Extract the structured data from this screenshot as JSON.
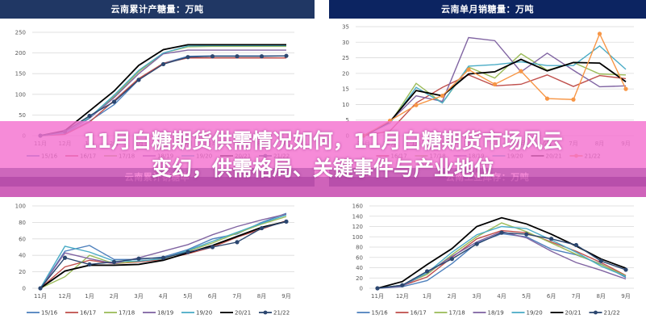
{
  "headline": {
    "line1": "11月白糖期货供需情况如何，11月白糖期货市场风云",
    "line2": "变幻，供需格局、关键事件与产业地位"
  },
  "colors": {
    "title_bar": "#203764",
    "banner_pink": "#f472d0",
    "banner_strip": "#a03296",
    "series": {
      "15/16": "#4f81bd",
      "16/17": "#c0504d",
      "17/18": "#9bbb59",
      "18/19": "#8064a2",
      "19/20": "#4bacc6",
      "20/21": "#000000",
      "21/22": "#2c4770",
      "21/22_orange": "#f79646"
    }
  },
  "chart_data": [
    {
      "id": "top-left",
      "type": "line",
      "title": "云南累计产糖量：万吨",
      "xlabel": "",
      "ylabel": "",
      "ylim": [
        0,
        250
      ],
      "yticks": [
        0,
        50,
        100,
        150,
        200,
        250
      ],
      "grid": true,
      "legend_position": "bottom",
      "categories": [
        "11月",
        "12月",
        "1月",
        "2月",
        "3月",
        "4月",
        "5月",
        "6月",
        "7月",
        "8月",
        "9月"
      ],
      "series": [
        {
          "name": "15/16",
          "values": [
            0,
            5,
            35,
            75,
            135,
            175,
            192,
            193,
            193,
            193,
            193
          ]
        },
        {
          "name": "16/17",
          "values": [
            0,
            3,
            33,
            85,
            138,
            175,
            188,
            188,
            188,
            188,
            188
          ]
        },
        {
          "name": "17/18",
          "values": [
            0,
            8,
            45,
            95,
            155,
            200,
            215,
            216,
            216,
            216,
            216
          ]
        },
        {
          "name": "18/19",
          "values": [
            0,
            6,
            42,
            92,
            150,
            198,
            207,
            207,
            207,
            207,
            207
          ]
        },
        {
          "name": "19/20",
          "values": [
            0,
            7,
            44,
            98,
            158,
            200,
            217,
            218,
            218,
            218,
            218
          ]
        },
        {
          "name": "20/21",
          "values": [
            0,
            12,
            60,
            108,
            170,
            208,
            220,
            220,
            220,
            220,
            220
          ]
        },
        {
          "name": "21/22",
          "values": [
            0,
            10,
            48,
            82,
            135,
            173,
            190,
            192,
            192,
            192,
            193
          ]
        }
      ],
      "visible_x_labels": [
        "11月",
        "12月",
        "9月"
      ],
      "legend": [
        "15/16",
        "16/17",
        "17/18",
        "18/19",
        "19/20",
        "20/21",
        "21/22"
      ]
    },
    {
      "id": "top-right",
      "type": "line",
      "title": "云南单月销糖量：万吨",
      "xlabel": "",
      "ylabel": "",
      "ylim": [
        0,
        35
      ],
      "yticks": [
        0,
        5,
        10,
        15,
        20,
        25,
        30,
        35
      ],
      "grid": true,
      "legend_position": "bottom",
      "categories": [
        "11月",
        "12月",
        "1月",
        "2月",
        "3月",
        "4月",
        "5月",
        "6月",
        "7月",
        "8月",
        "9月"
      ],
      "series": [
        {
          "name": "16/17",
          "values": [
            0,
            1.5,
            10.5,
            15.5,
            19.5,
            16,
            16.5,
            19.5,
            15.8,
            19.3,
            18.3
          ]
        },
        {
          "name": "17/18",
          "values": [
            0,
            4,
            16.8,
            10.5,
            22,
            18.5,
            26.3,
            21,
            23.5,
            19.8,
            19.5
          ]
        },
        {
          "name": "18/19",
          "values": [
            0,
            4.5,
            12.8,
            11,
            31.5,
            30.5,
            20.5,
            26.5,
            21,
            15.7,
            16
          ]
        },
        {
          "name": "19/20",
          "values": [
            0,
            4,
            15.5,
            10.5,
            22.3,
            22.8,
            23.7,
            22.5,
            22.5,
            28.8,
            21.3
          ]
        },
        {
          "name": "20/21",
          "values": [
            0,
            4.5,
            14.5,
            12.8,
            19.8,
            20.5,
            24.5,
            20.8,
            23.5,
            23.3,
            17.3
          ]
        },
        {
          "name": "21/22",
          "values": [
            0,
            4.8,
            9.8,
            12.8,
            21.2,
            16.5,
            20.7,
            11.9,
            11.6,
            32.7,
            15
          ]
        }
      ],
      "visible_x_labels": [
        "11月",
        "9月"
      ],
      "legend": [
        "16/17",
        "17/18",
        "18/19",
        "19/20",
        "20/21",
        "21/22"
      ]
    },
    {
      "id": "bottom-left",
      "type": "line",
      "title": "云南累计销糖率",
      "xlabel": "",
      "ylabel": "",
      "ylim": [
        0,
        100
      ],
      "yticks": [
        0,
        20,
        40,
        60,
        80,
        100
      ],
      "grid": true,
      "legend_position": "bottom",
      "categories": [
        "11月",
        "12月",
        "1月",
        "2月",
        "3月",
        "4月",
        "5月",
        "6月",
        "7月",
        "8月",
        "9月"
      ],
      "series": [
        {
          "name": "15/16",
          "values": [
            0,
            45,
            52,
            35,
            35,
            38,
            47,
            60,
            66,
            80,
            91
          ]
        },
        {
          "name": "16/17",
          "values": [
            0,
            26,
            34,
            30,
            32,
            35,
            42,
            50,
            62,
            72,
            82
          ]
        },
        {
          "name": "17/18",
          "values": [
            0,
            14,
            40,
            30,
            33,
            36,
            45,
            55,
            67,
            78,
            87
          ]
        },
        {
          "name": "18/19",
          "values": [
            0,
            43,
            36,
            30,
            37,
            45,
            53,
            65,
            75,
            83,
            90
          ]
        },
        {
          "name": "19/20",
          "values": [
            0,
            51,
            44,
            33,
            33,
            36,
            46,
            57,
            68,
            79,
            89
          ]
        },
        {
          "name": "20/21",
          "values": [
            0,
            21,
            28,
            28,
            29,
            34,
            43,
            52,
            63,
            74,
            81
          ]
        },
        {
          "name": "21/22",
          "values": [
            0,
            37,
            29,
            32,
            36,
            37,
            44,
            50,
            56,
            73,
            81
          ]
        }
      ],
      "legend": [
        "15/16",
        "16/17",
        "17/18",
        "18/19",
        "19/20",
        "20/21",
        "21/22"
      ]
    },
    {
      "id": "bottom-right",
      "type": "line",
      "title": "云南工业库存：万吨",
      "xlabel": "",
      "ylabel": "",
      "ylim": [
        0,
        160
      ],
      "yticks": [
        0,
        20,
        40,
        60,
        80,
        100,
        120,
        140,
        160
      ],
      "grid": true,
      "legend_position": "bottom",
      "categories": [
        "11月",
        "12月",
        "1月",
        "2月",
        "3月",
        "4月",
        "5月",
        "6月",
        "7月",
        "8月",
        "9月"
      ],
      "series": [
        {
          "name": "15/16",
          "values": [
            0,
            3,
            15,
            48,
            88,
            106,
            100,
            76,
            65,
            47,
            21
          ]
        },
        {
          "name": "16/17",
          "values": [
            0,
            5,
            22,
            60,
            96,
            112,
            108,
            90,
            72,
            50,
            25
          ]
        },
        {
          "name": "17/18",
          "values": [
            0,
            6,
            27,
            65,
            100,
            127,
            110,
            88,
            66,
            46,
            24
          ]
        },
        {
          "name": "18/19",
          "values": [
            0,
            4,
            30,
            62,
            90,
            110,
            98,
            72,
            50,
            35,
            18
          ]
        },
        {
          "name": "19/20",
          "values": [
            0,
            6,
            30,
            70,
            104,
            120,
            116,
            94,
            70,
            43,
            23
          ]
        },
        {
          "name": "20/21",
          "values": [
            0,
            13,
            46,
            77,
            120,
            137,
            125,
            105,
            82,
            57,
            39
          ]
        },
        {
          "name": "21/22",
          "values": [
            0,
            6,
            33,
            57,
            86,
            108,
            105,
            96,
            84,
            53,
            36
          ]
        }
      ],
      "legend": [
        "15/16",
        "16/17",
        "17/18",
        "18/19",
        "19/20",
        "20/21",
        "21/22"
      ]
    }
  ]
}
